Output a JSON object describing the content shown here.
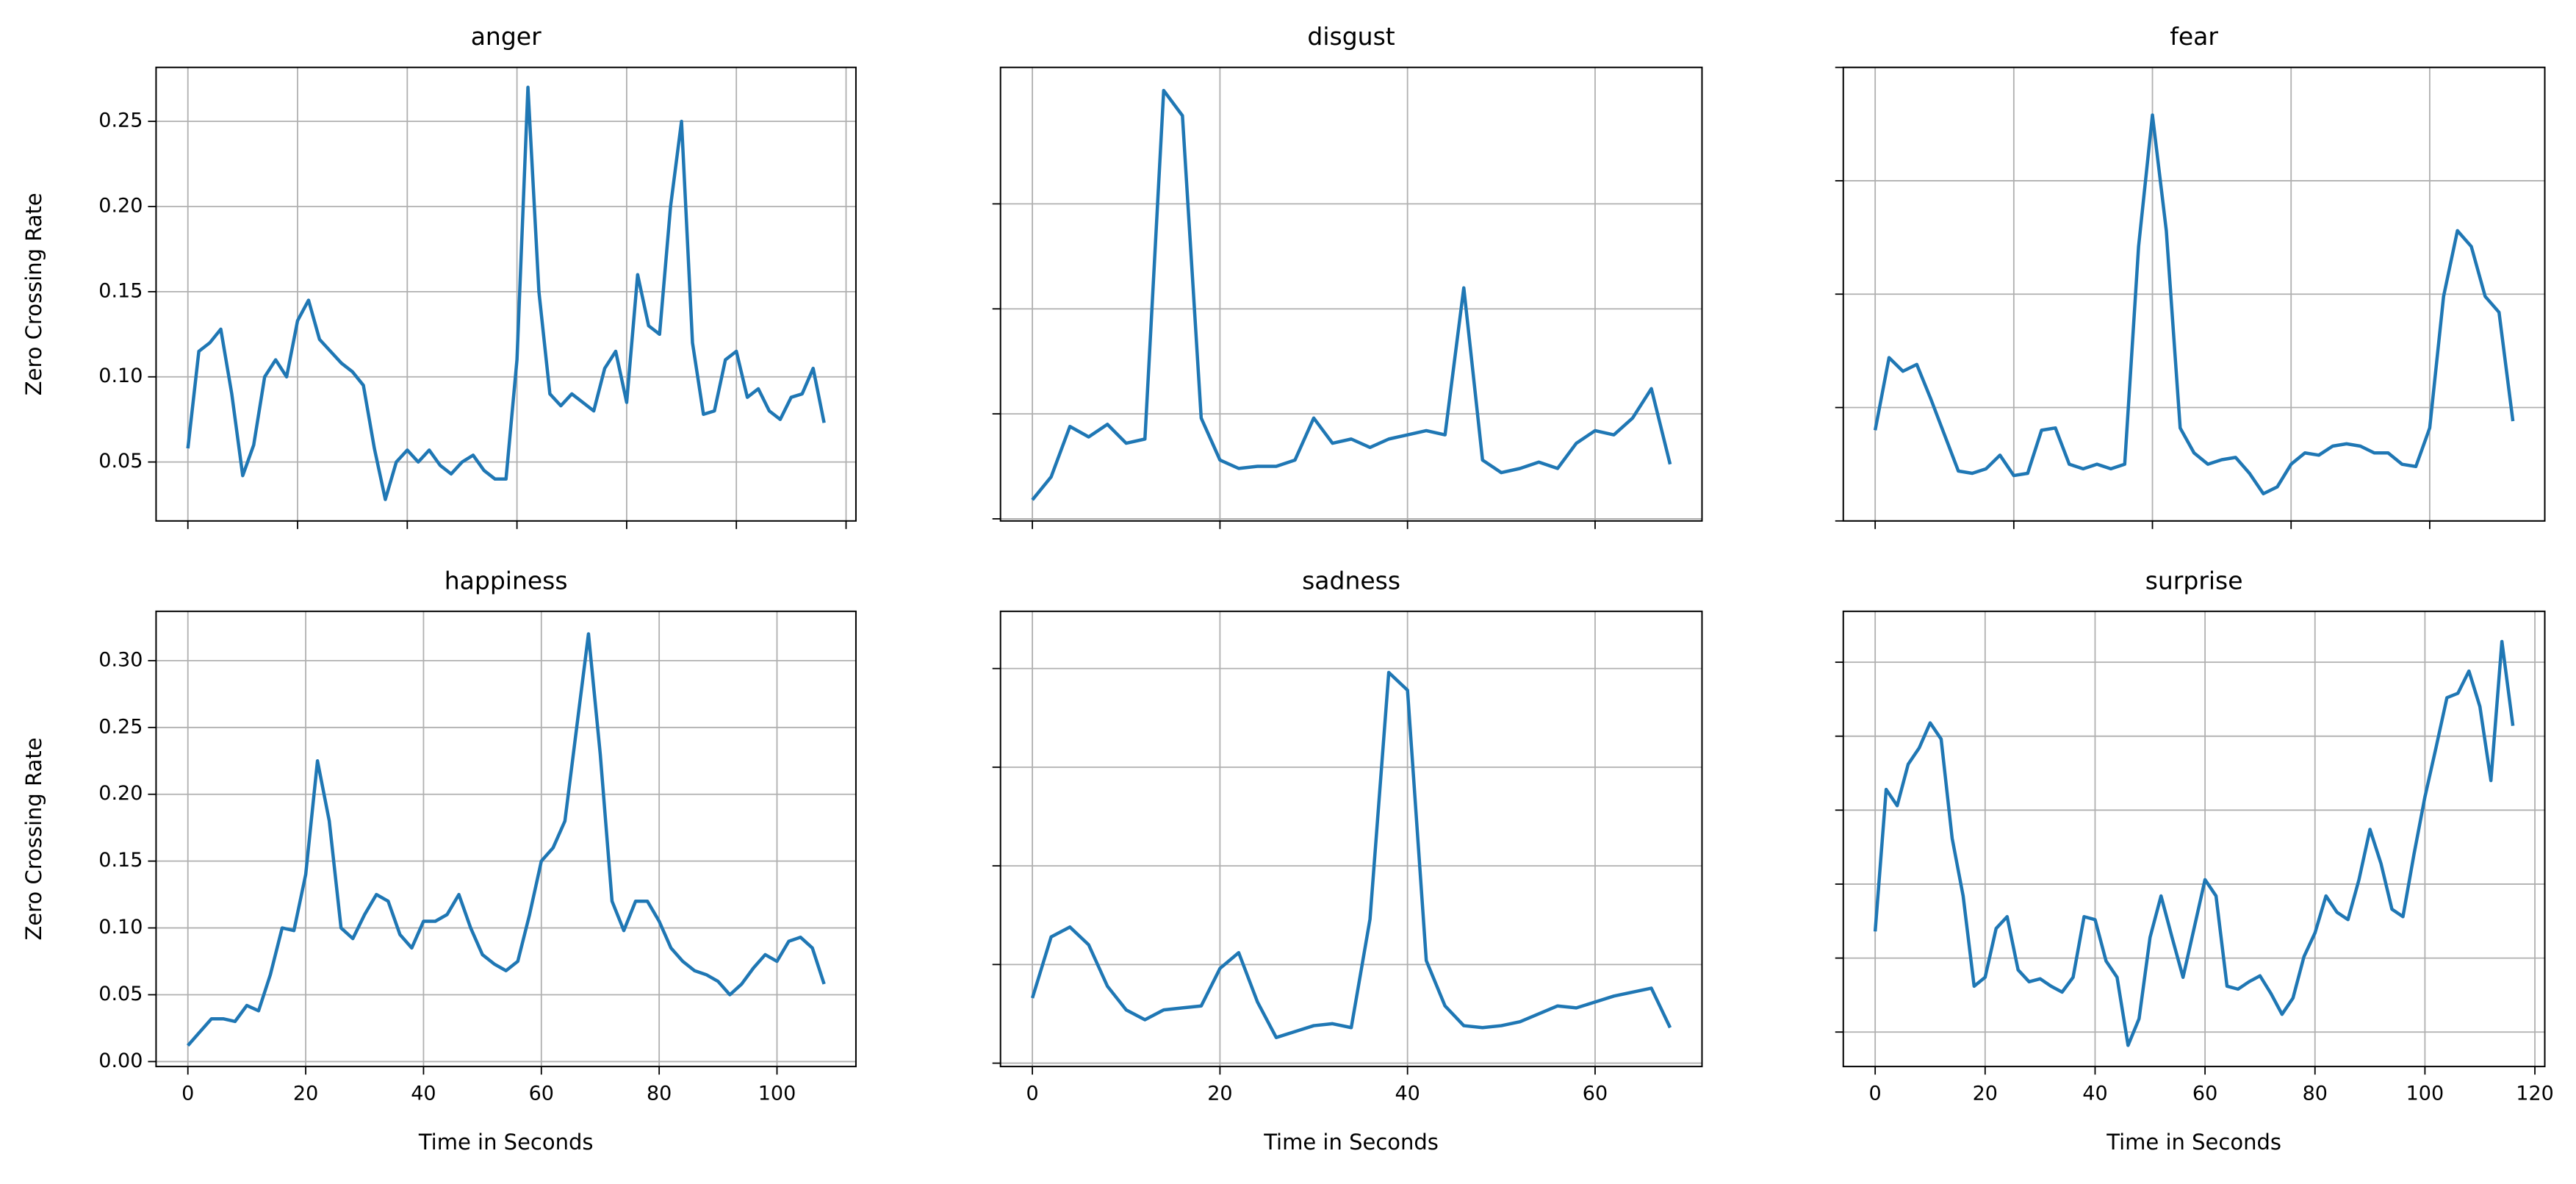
{
  "chart_data": [
    {
      "type": "line",
      "title": "anger",
      "ylabel": "Zero Crossing Rate",
      "grid": true,
      "x": [
        0,
        2,
        4,
        6,
        8,
        10,
        12,
        14,
        16,
        18,
        20,
        22,
        24,
        26,
        28,
        30,
        32,
        34,
        36,
        38,
        40,
        42,
        44,
        46,
        48,
        50,
        52,
        54,
        56,
        58,
        60,
        62,
        64,
        66,
        68,
        70,
        72,
        74,
        76,
        78,
        80,
        82,
        84,
        86,
        88,
        90,
        92,
        94,
        96,
        98,
        100,
        102,
        104,
        106,
        108,
        110,
        112,
        114,
        116
      ],
      "series": [
        {
          "color": "#1f77b4",
          "values": [
            0.058,
            0.115,
            0.12,
            0.128,
            0.09,
            0.042,
            0.06,
            0.1,
            0.11,
            0.1,
            0.133,
            0.145,
            0.122,
            0.115,
            0.108,
            0.103,
            0.095,
            0.058,
            0.028,
            0.05,
            0.057,
            0.05,
            0.057,
            0.048,
            0.043,
            0.05,
            0.054,
            0.045,
            0.04,
            0.04,
            0.11,
            0.27,
            0.15,
            0.09,
            0.083,
            0.09,
            0.085,
            0.08,
            0.105,
            0.115,
            0.085,
            0.16,
            0.13,
            0.125,
            0.2,
            0.25,
            0.12,
            0.078,
            0.08,
            0.11,
            0.115,
            0.088,
            0.093,
            0.08,
            0.075,
            0.088,
            0.09,
            0.105,
            0.073
          ]
        }
      ],
      "xlim": [
        -5.8,
        121.8
      ],
      "xticks": [
        0,
        20,
        40,
        60,
        80,
        100,
        120
      ],
      "ylim": [
        0.0154,
        0.2817
      ],
      "yticks": [
        0.05,
        {
          "value": 0.1,
          "label": "0.10"
        },
        0.15,
        {
          "value": 0.2,
          "label": "0.20"
        },
        0.25
      ]
    },
    {
      "type": "line",
      "title": "disgust",
      "grid": true,
      "x": [
        0,
        2,
        4,
        6,
        8,
        10,
        12,
        14,
        16,
        18,
        20,
        22,
        24,
        26,
        28,
        30,
        32,
        34,
        36,
        38,
        40,
        42,
        44,
        46,
        48,
        50,
        52,
        54,
        56,
        58,
        60,
        62,
        64,
        66,
        68
      ],
      "series": [
        {
          "color": "#1f77b4",
          "values": [
            0.059,
            0.07,
            0.094,
            0.089,
            0.095,
            0.086,
            0.088,
            0.254,
            0.242,
            0.098,
            0.078,
            0.074,
            0.075,
            0.075,
            0.078,
            0.098,
            0.086,
            0.088,
            0.084,
            0.088,
            0.09,
            0.092,
            0.09,
            0.16,
            0.078,
            0.072,
            0.074,
            0.077,
            0.074,
            0.086,
            0.092,
            0.09,
            0.098,
            0.112,
            0.076
          ]
        }
      ],
      "xlim": [
        -3.4,
        71.4
      ],
      "xticks": [
        0,
        20,
        40,
        60
      ],
      "ylim": [
        0.049,
        0.265
      ],
      "yticks": [
        0.05,
        0.1,
        0.15,
        0.2
      ]
    },
    {
      "type": "line",
      "title": "fear",
      "grid": true,
      "x": [
        0,
        2,
        4,
        6,
        8,
        10,
        12,
        14,
        16,
        18,
        20,
        22,
        24,
        26,
        28,
        30,
        32,
        34,
        36,
        38,
        40,
        42,
        44,
        46,
        48,
        50,
        52,
        54,
        56,
        58,
        60,
        62,
        64,
        66,
        68,
        70,
        72,
        74,
        76,
        78,
        80,
        82,
        84,
        86,
        88,
        90,
        92
      ],
      "series": [
        {
          "color": "#1f77b4",
          "values": [
            0.09,
            0.122,
            0.116,
            0.119,
            0.104,
            0.088,
            0.072,
            0.071,
            0.073,
            0.079,
            0.07,
            0.071,
            0.09,
            0.091,
            0.075,
            0.073,
            0.075,
            0.073,
            0.075,
            0.171,
            0.229,
            0.178,
            0.091,
            0.08,
            0.075,
            0.077,
            0.078,
            0.071,
            0.062,
            0.065,
            0.075,
            0.08,
            0.079,
            0.083,
            0.084,
            0.083,
            0.08,
            0.08,
            0.075,
            0.074,
            0.091,
            0.149,
            0.178,
            0.171,
            0.149,
            0.142,
            0.094
          ]
        }
      ],
      "xlim": [
        -4.6,
        96.6
      ],
      "xticks": [
        0,
        20,
        40,
        60,
        80
      ],
      "ylim": [
        0.05,
        0.25
      ],
      "yticks": [
        0.05,
        0.1,
        0.15,
        0.2,
        0.25
      ]
    },
    {
      "type": "line",
      "title": "happiness",
      "xlabel": "Time in Seconds",
      "ylabel": "Zero Crossing Rate",
      "grid": true,
      "x": [
        0,
        2,
        4,
        6,
        8,
        10,
        12,
        14,
        16,
        18,
        20,
        22,
        24,
        26,
        28,
        30,
        32,
        34,
        36,
        38,
        40,
        42,
        44,
        46,
        48,
        50,
        52,
        54,
        56,
        58,
        60,
        62,
        64,
        66,
        68,
        70,
        72,
        74,
        76,
        78,
        80,
        82,
        84,
        86,
        88,
        90,
        92,
        94,
        96,
        98,
        100,
        102,
        104,
        106,
        108
      ],
      "series": [
        {
          "color": "#1f77b4",
          "values": [
            0.012,
            0.022,
            0.032,
            0.032,
            0.03,
            0.042,
            0.038,
            0.065,
            0.1,
            0.098,
            0.14,
            0.225,
            0.18,
            0.1,
            0.092,
            0.11,
            0.125,
            0.12,
            0.095,
            0.085,
            0.105,
            0.105,
            0.11,
            0.125,
            0.1,
            0.08,
            0.073,
            0.068,
            0.075,
            0.11,
            0.15,
            0.16,
            0.18,
            0.25,
            0.32,
            0.23,
            0.12,
            0.098,
            0.12,
            0.12,
            0.105,
            0.085,
            0.075,
            0.068,
            0.065,
            0.06,
            0.05,
            0.058,
            0.07,
            0.08,
            0.075,
            0.09,
            0.093,
            0.085,
            0.058
          ]
        }
      ],
      "xlim": [
        -5.4,
        113.4
      ],
      "xticks": [
        0,
        20,
        40,
        60,
        80,
        100
      ],
      "ylim": [
        -0.0037,
        0.3369
      ],
      "yticks": [
        {
          "value": 0,
          "label": "0.00"
        },
        0.05,
        {
          "value": 0.1,
          "label": "0.10"
        },
        0.15,
        {
          "value": 0.2,
          "label": "0.20"
        },
        0.25,
        {
          "value": 0.3,
          "label": "0.30"
        }
      ]
    },
    {
      "type": "line",
      "title": "sadness",
      "xlabel": "Time in Seconds",
      "grid": true,
      "x": [
        0,
        2,
        4,
        6,
        8,
        10,
        12,
        14,
        16,
        18,
        20,
        22,
        24,
        26,
        28,
        30,
        32,
        34,
        36,
        38,
        40,
        42,
        44,
        46,
        48,
        50,
        52,
        54,
        56,
        58,
        60,
        62,
        64,
        66,
        68
      ],
      "series": [
        {
          "color": "#1f77b4",
          "values": [
            0.033,
            0.064,
            0.069,
            0.06,
            0.039,
            0.027,
            0.022,
            0.027,
            0.028,
            0.029,
            0.048,
            0.056,
            0.031,
            0.013,
            0.016,
            0.019,
            0.02,
            0.018,
            0.073,
            0.198,
            0.189,
            0.052,
            0.029,
            0.019,
            0.018,
            0.019,
            0.021,
            0.025,
            0.029,
            0.028,
            0.031,
            0.034,
            0.036,
            0.038,
            0.018
          ]
        }
      ],
      "xlim": [
        -3.4,
        71.4
      ],
      "xticks": [
        0,
        20,
        40,
        60
      ],
      "ylim": [
        -0.0017,
        0.229
      ],
      "yticks": [
        0,
        0.05,
        0.1,
        0.15,
        0.2
      ]
    },
    {
      "type": "line",
      "title": "surprise",
      "xlabel": "Time in Seconds",
      "grid": true,
      "x": [
        0,
        2,
        4,
        6,
        8,
        10,
        12,
        14,
        16,
        18,
        20,
        22,
        24,
        26,
        28,
        30,
        32,
        34,
        36,
        38,
        40,
        42,
        44,
        46,
        48,
        50,
        52,
        54,
        56,
        58,
        60,
        62,
        64,
        66,
        68,
        70,
        72,
        74,
        76,
        78,
        80,
        82,
        84,
        86,
        88,
        90,
        92,
        94,
        96,
        98,
        100,
        102,
        104,
        106,
        108,
        110,
        112,
        114,
        116
      ],
      "series": [
        {
          "color": "#1f77b4",
          "values": [
            0.118,
            0.214,
            0.203,
            0.231,
            0.242,
            0.259,
            0.248,
            0.181,
            0.142,
            0.081,
            0.087,
            0.12,
            0.128,
            0.092,
            0.084,
            0.086,
            0.081,
            0.077,
            0.087,
            0.128,
            0.126,
            0.098,
            0.087,
            0.041,
            0.059,
            0.114,
            0.142,
            0.114,
            0.087,
            0.12,
            0.153,
            0.142,
            0.081,
            0.079,
            0.084,
            0.088,
            0.076,
            0.062,
            0.073,
            0.101,
            0.117,
            0.142,
            0.131,
            0.126,
            0.153,
            0.187,
            0.164,
            0.133,
            0.128,
            0.17,
            0.209,
            0.242,
            0.276,
            0.279,
            0.294,
            0.27,
            0.22,
            0.314,
            0.257
          ]
        }
      ],
      "xlim": [
        -5.8,
        121.8
      ],
      "xticks": [
        0,
        20,
        40,
        60,
        80,
        100,
        120
      ],
      "ylim": [
        0.0267,
        0.3344
      ],
      "yticks": [
        0.05,
        0.1,
        0.15,
        0.2,
        0.25,
        0.3
      ]
    }
  ]
}
